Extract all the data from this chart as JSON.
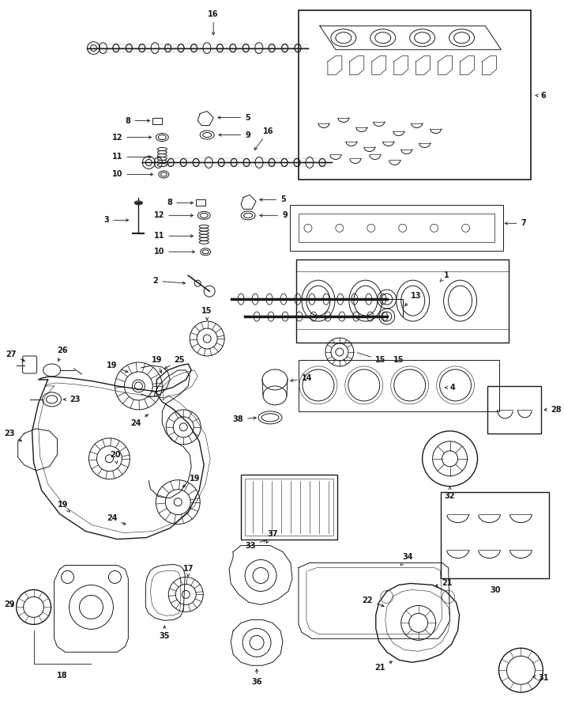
{
  "bg_color": "#ffffff",
  "line_color": "#1a1a1a",
  "fig_width": 7.14,
  "fig_height": 9.0,
  "dpi": 100,
  "label_fs": 7.0,
  "label_fw": "bold",
  "lw": 0.7
}
